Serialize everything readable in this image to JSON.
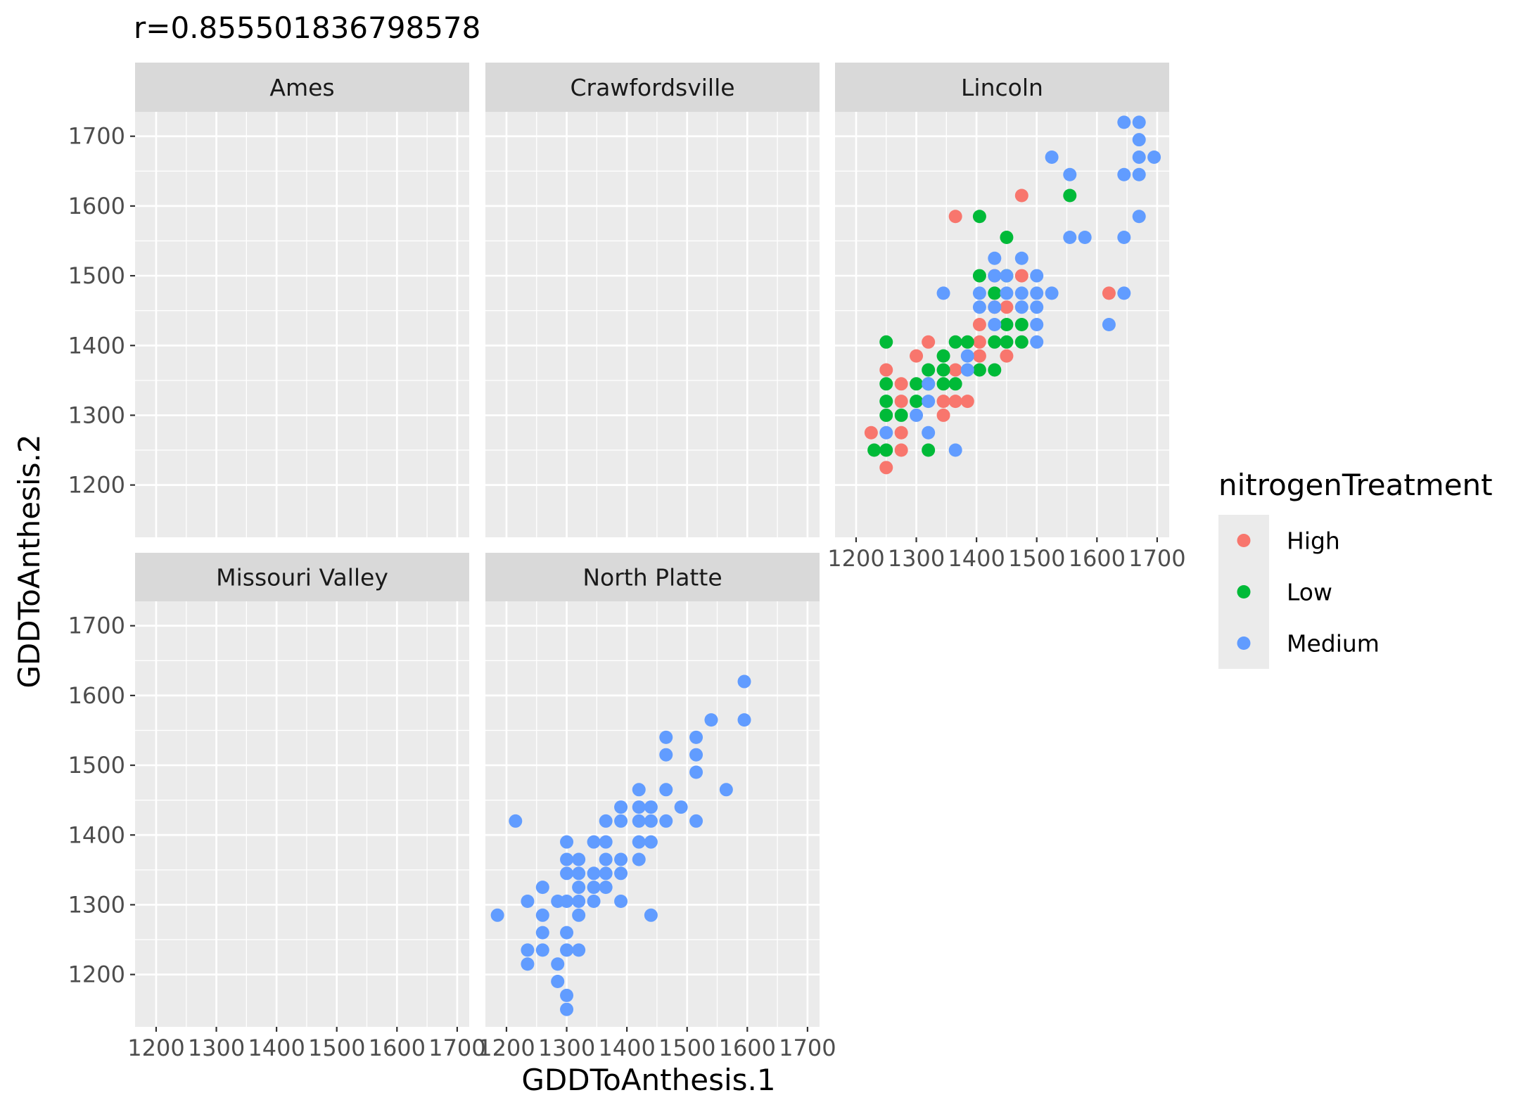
{
  "chart_data": {
    "type": "scatter",
    "title": "r=0.855501836798578",
    "xlabel": "GDDToAnthesis.1",
    "ylabel": "GDDToAnthesis.2",
    "xlim": [
      1165,
      1720
    ],
    "ylim": [
      1125,
      1735
    ],
    "x_ticks": [
      1200,
      1300,
      1400,
      1500,
      1600,
      1700
    ],
    "y_ticks": [
      1200,
      1300,
      1400,
      1500,
      1600,
      1700
    ],
    "facets": [
      "Ames",
      "Crawfordsville",
      "Lincoln",
      "Missouri Valley",
      "North Platte"
    ],
    "legend": {
      "title": "nitrogenTreatment",
      "position": "right",
      "entries": [
        {
          "label": "High",
          "color": "#F8766D"
        },
        {
          "label": "Low",
          "color": "#00BA38"
        },
        {
          "label": "Medium",
          "color": "#619CFF"
        }
      ]
    },
    "grid": true,
    "series": [
      {
        "name": "High",
        "facet": "Lincoln",
        "color": "#F8766D",
        "points": [
          [
            1225,
            1275
          ],
          [
            1250,
            1365
          ],
          [
            1250,
            1225
          ],
          [
            1275,
            1345
          ],
          [
            1275,
            1320
          ],
          [
            1275,
            1275
          ],
          [
            1275,
            1250
          ],
          [
            1300,
            1385
          ],
          [
            1320,
            1405
          ],
          [
            1345,
            1320
          ],
          [
            1345,
            1300
          ],
          [
            1365,
            1585
          ],
          [
            1365,
            1365
          ],
          [
            1365,
            1320
          ],
          [
            1385,
            1320
          ],
          [
            1405,
            1430
          ],
          [
            1405,
            1405
          ],
          [
            1405,
            1385
          ],
          [
            1430,
            1500
          ],
          [
            1430,
            1455
          ],
          [
            1450,
            1455
          ],
          [
            1450,
            1385
          ],
          [
            1475,
            1615
          ],
          [
            1475,
            1500
          ],
          [
            1620,
            1475
          ]
        ]
      },
      {
        "name": "Low",
        "facet": "Lincoln",
        "color": "#00BA38",
        "points": [
          [
            1230,
            1250
          ],
          [
            1250,
            1405
          ],
          [
            1250,
            1345
          ],
          [
            1250,
            1320
          ],
          [
            1250,
            1300
          ],
          [
            1250,
            1250
          ],
          [
            1275,
            1300
          ],
          [
            1300,
            1345
          ],
          [
            1300,
            1320
          ],
          [
            1320,
            1365
          ],
          [
            1320,
            1345
          ],
          [
            1320,
            1250
          ],
          [
            1345,
            1385
          ],
          [
            1345,
            1365
          ],
          [
            1345,
            1345
          ],
          [
            1365,
            1405
          ],
          [
            1365,
            1345
          ],
          [
            1385,
            1405
          ],
          [
            1405,
            1585
          ],
          [
            1405,
            1500
          ],
          [
            1405,
            1365
          ],
          [
            1430,
            1475
          ],
          [
            1430,
            1405
          ],
          [
            1430,
            1365
          ],
          [
            1450,
            1555
          ],
          [
            1450,
            1500
          ],
          [
            1450,
            1430
          ],
          [
            1450,
            1405
          ],
          [
            1475,
            1430
          ],
          [
            1475,
            1405
          ],
          [
            1555,
            1615
          ]
        ]
      },
      {
        "name": "Medium",
        "facet": "Lincoln",
        "color": "#619CFF",
        "points": [
          [
            1250,
            1275
          ],
          [
            1300,
            1300
          ],
          [
            1320,
            1345
          ],
          [
            1320,
            1320
          ],
          [
            1320,
            1275
          ],
          [
            1345,
            1475
          ],
          [
            1365,
            1250
          ],
          [
            1385,
            1385
          ],
          [
            1385,
            1365
          ],
          [
            1405,
            1475
          ],
          [
            1405,
            1455
          ],
          [
            1430,
            1525
          ],
          [
            1430,
            1500
          ],
          [
            1430,
            1455
          ],
          [
            1430,
            1430
          ],
          [
            1450,
            1500
          ],
          [
            1450,
            1475
          ],
          [
            1475,
            1525
          ],
          [
            1475,
            1475
          ],
          [
            1475,
            1455
          ],
          [
            1500,
            1500
          ],
          [
            1500,
            1475
          ],
          [
            1500,
            1455
          ],
          [
            1500,
            1430
          ],
          [
            1500,
            1405
          ],
          [
            1525,
            1475
          ],
          [
            1525,
            1670
          ],
          [
            1555,
            1645
          ],
          [
            1555,
            1555
          ],
          [
            1580,
            1555
          ],
          [
            1620,
            1430
          ],
          [
            1645,
            1720
          ],
          [
            1645,
            1645
          ],
          [
            1645,
            1555
          ],
          [
            1645,
            1475
          ],
          [
            1670,
            1720
          ],
          [
            1670,
            1695
          ],
          [
            1670,
            1670
          ],
          [
            1670,
            1645
          ],
          [
            1670,
            1585
          ],
          [
            1695,
            1670
          ]
        ]
      },
      {
        "name": "Medium",
        "facet": "North Platte",
        "color": "#619CFF",
        "points": [
          [
            1185,
            1285
          ],
          [
            1215,
            1420
          ],
          [
            1235,
            1305
          ],
          [
            1235,
            1235
          ],
          [
            1235,
            1215
          ],
          [
            1260,
            1325
          ],
          [
            1260,
            1285
          ],
          [
            1260,
            1260
          ],
          [
            1260,
            1235
          ],
          [
            1285,
            1305
          ],
          [
            1285,
            1215
          ],
          [
            1285,
            1190
          ],
          [
            1300,
            1390
          ],
          [
            1300,
            1365
          ],
          [
            1300,
            1345
          ],
          [
            1300,
            1305
          ],
          [
            1300,
            1260
          ],
          [
            1300,
            1235
          ],
          [
            1300,
            1170
          ],
          [
            1300,
            1150
          ],
          [
            1320,
            1365
          ],
          [
            1320,
            1345
          ],
          [
            1320,
            1325
          ],
          [
            1320,
            1305
          ],
          [
            1320,
            1285
          ],
          [
            1320,
            1235
          ],
          [
            1345,
            1390
          ],
          [
            1345,
            1345
          ],
          [
            1345,
            1325
          ],
          [
            1345,
            1305
          ],
          [
            1365,
            1420
          ],
          [
            1365,
            1390
          ],
          [
            1365,
            1365
          ],
          [
            1365,
            1345
          ],
          [
            1365,
            1325
          ],
          [
            1390,
            1440
          ],
          [
            1390,
            1420
          ],
          [
            1390,
            1365
          ],
          [
            1390,
            1345
          ],
          [
            1390,
            1305
          ],
          [
            1420,
            1465
          ],
          [
            1420,
            1440
          ],
          [
            1420,
            1420
          ],
          [
            1420,
            1390
          ],
          [
            1420,
            1365
          ],
          [
            1440,
            1440
          ],
          [
            1440,
            1420
          ],
          [
            1440,
            1390
          ],
          [
            1440,
            1285
          ],
          [
            1465,
            1540
          ],
          [
            1465,
            1515
          ],
          [
            1465,
            1465
          ],
          [
            1465,
            1420
          ],
          [
            1490,
            1440
          ],
          [
            1515,
            1540
          ],
          [
            1515,
            1515
          ],
          [
            1515,
            1490
          ],
          [
            1515,
            1420
          ],
          [
            1540,
            1565
          ],
          [
            1565,
            1465
          ],
          [
            1595,
            1620
          ],
          [
            1595,
            1565
          ]
        ]
      }
    ]
  }
}
